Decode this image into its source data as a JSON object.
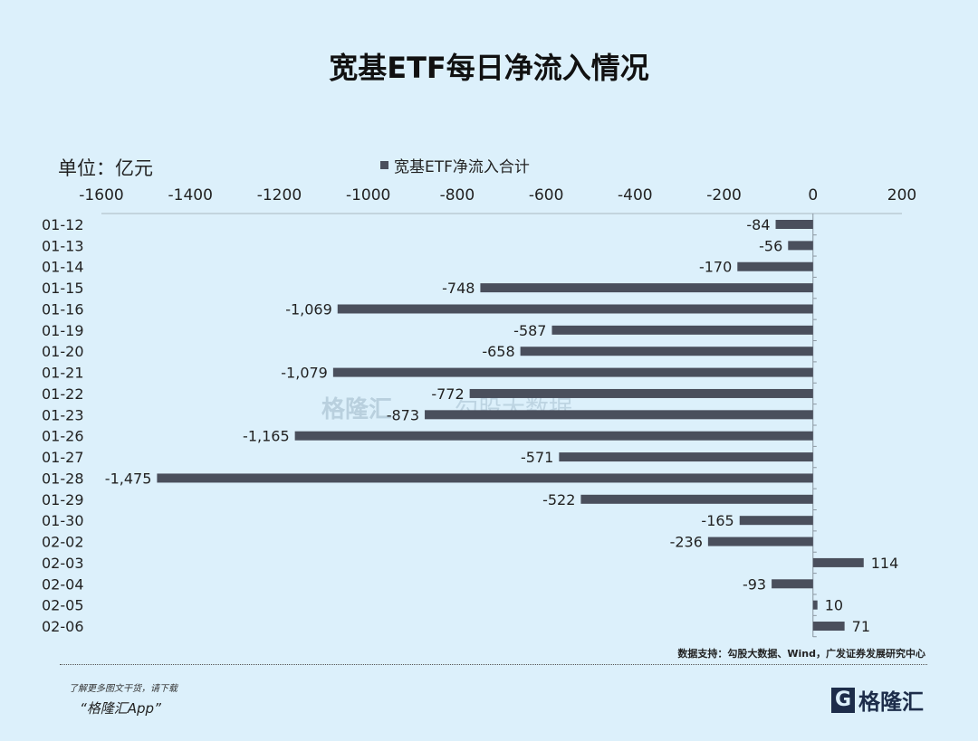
{
  "chart_data": {
    "type": "bar",
    "orientation": "horizontal",
    "title": "宽基ETF每日净流入情况",
    "unit_label": "单位：亿元",
    "legend": [
      "宽基ETF净流入合计"
    ],
    "legend_position": "top",
    "categories": [
      "01-12",
      "01-13",
      "01-14",
      "01-15",
      "01-16",
      "01-19",
      "01-20",
      "01-21",
      "01-22",
      "01-23",
      "01-26",
      "01-27",
      "01-28",
      "01-29",
      "01-30",
      "02-02",
      "02-03",
      "02-04",
      "02-05",
      "02-06"
    ],
    "series": [
      {
        "name": "宽基ETF净流入合计",
        "values": [
          -84,
          -56,
          -170,
          -748,
          -1069,
          -587,
          -658,
          -1079,
          -772,
          -873,
          -1165,
          -571,
          -1475,
          -522,
          -165,
          -236,
          114,
          -93,
          10,
          71
        ],
        "labels": [
          "-84",
          "-56",
          "-170",
          "-748",
          "-1,069",
          "-587",
          "-658",
          "-1,079",
          "-772",
          "-873",
          "-1,165",
          "-571",
          "-1,475",
          "-522",
          "-165",
          "-236",
          "114",
          "-93",
          "10",
          "71"
        ]
      }
    ],
    "xlim": [
      -1600,
      200
    ],
    "xticks": [
      -1600,
      -1400,
      -1200,
      -1000,
      -800,
      -600,
      -400,
      -200,
      0,
      200
    ],
    "xaxis_position": "top",
    "grid": false,
    "bar_color": "#4a4f5c"
  },
  "footer": {
    "source": "数据支持：勾股大数据、Wind，广发证券发展研究中心",
    "promo_line1": "了解更多图文干货，请下载",
    "promo_line2": "“格隆汇App”",
    "logo_text": "格隆汇",
    "logo_letter": "G"
  },
  "watermark": {
    "brand": "格隆汇",
    "data_brand": "勾股大数据"
  }
}
